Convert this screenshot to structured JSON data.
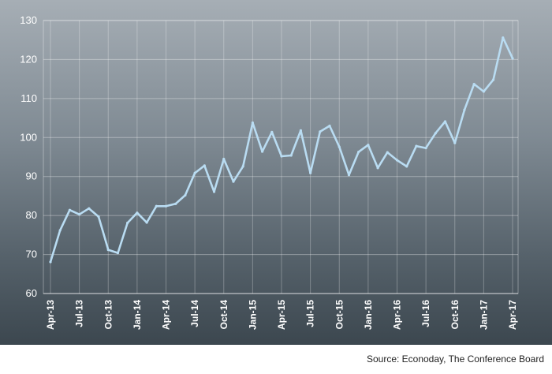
{
  "chart_data": {
    "type": "line",
    "title": "",
    "xlabel": "",
    "ylabel": "",
    "ylim": [
      60,
      130
    ],
    "yticks": [
      60,
      70,
      80,
      90,
      100,
      110,
      120,
      130
    ],
    "grid": true,
    "legend": "none",
    "x": [
      "Apr-13",
      "May-13",
      "Jun-13",
      "Jul-13",
      "Aug-13",
      "Sep-13",
      "Oct-13",
      "Nov-13",
      "Dec-13",
      "Jan-14",
      "Feb-14",
      "Mar-14",
      "Apr-14",
      "May-14",
      "Jun-14",
      "Jul-14",
      "Aug-14",
      "Sep-14",
      "Oct-14",
      "Nov-14",
      "Dec-14",
      "Jan-15",
      "Feb-15",
      "Mar-15",
      "Apr-15",
      "May-15",
      "Jun-15",
      "Jul-15",
      "Aug-15",
      "Sep-15",
      "Oct-15",
      "Nov-15",
      "Dec-15",
      "Jan-16",
      "Feb-16",
      "Mar-16",
      "Apr-16",
      "May-16",
      "Jun-16",
      "Jul-16",
      "Aug-16",
      "Sep-16",
      "Oct-16",
      "Nov-16",
      "Dec-16",
      "Jan-17",
      "Feb-17",
      "Mar-17",
      "Apr-17"
    ],
    "x_tick_labels": [
      "Apr-13",
      "Jul-13",
      "Oct-13",
      "Jan-14",
      "Apr-14",
      "Jul-14",
      "Oct-14",
      "Jan-15",
      "Apr-15",
      "Jul-15",
      "Oct-15",
      "Jan-16",
      "Apr-16",
      "Jul-16",
      "Oct-16",
      "Jan-17",
      "Apr-17"
    ],
    "series": [
      {
        "values": [
          68.1,
          76.2,
          81.4,
          80.3,
          81.8,
          79.7,
          71.2,
          70.4,
          78.1,
          80.7,
          78.2,
          82.4,
          82.4,
          83.0,
          85.2,
          90.9,
          92.8,
          86.1,
          94.5,
          88.7,
          92.6,
          103.8,
          96.4,
          101.4,
          95.2,
          95.4,
          101.8,
          90.9,
          101.5,
          103.0,
          97.6,
          90.4,
          96.3,
          98.1,
          92.2,
          96.2,
          94.2,
          92.6,
          97.8,
          97.3,
          101.1,
          104.1,
          98.6,
          107.1,
          113.7,
          111.8,
          114.8,
          125.6,
          120.3
        ],
        "color": "#b9dcf2"
      }
    ]
  },
  "source_note": "Source: Econoday, The Conference Board"
}
